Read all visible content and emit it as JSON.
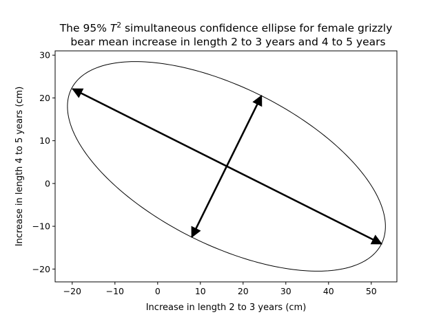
{
  "chart_data": {
    "type": "line",
    "title_line1_prefix": "The 95% ",
    "title_line1_var": "T",
    "title_line1_sup": "2",
    "title_line1_suffix": " simultaneous confidence ellipse for female grizzly",
    "title_line2": "bear mean increase in length 2 to 3 years and 4 to 5 years",
    "xlabel": "Increase in length 2 to 3 years (cm)",
    "ylabel": "Increase in length 4 to 5 years (cm)",
    "xlim": [
      -24,
      56
    ],
    "ylim": [
      -23,
      31
    ],
    "xticks": [
      -20,
      -10,
      0,
      10,
      20,
      30,
      40,
      50
    ],
    "yticks": [
      -20,
      -10,
      0,
      10,
      20,
      30
    ],
    "xtick_labels": [
      "−20",
      "−10",
      "0",
      "10",
      "20",
      "30",
      "40",
      "50"
    ],
    "ytick_labels": [
      "−20",
      "−10",
      "0",
      "10",
      "20",
      "30"
    ],
    "ellipse": {
      "center": [
        16.1,
        4.0
      ],
      "major_axis_end": [
        52.4,
        -14.1
      ],
      "minor_axis_end": [
        24.3,
        20.5
      ],
      "color": "#000000"
    },
    "arrows": [
      {
        "name": "major-axis-arrow",
        "from": [
          -19.9,
          22.1
        ],
        "to": [
          52.4,
          -14.1
        ]
      },
      {
        "name": "minor-axis-arrow",
        "from": [
          8.0,
          -12.5
        ],
        "to": [
          24.3,
          20.5
        ]
      }
    ],
    "grid": false,
    "legend": "none"
  }
}
